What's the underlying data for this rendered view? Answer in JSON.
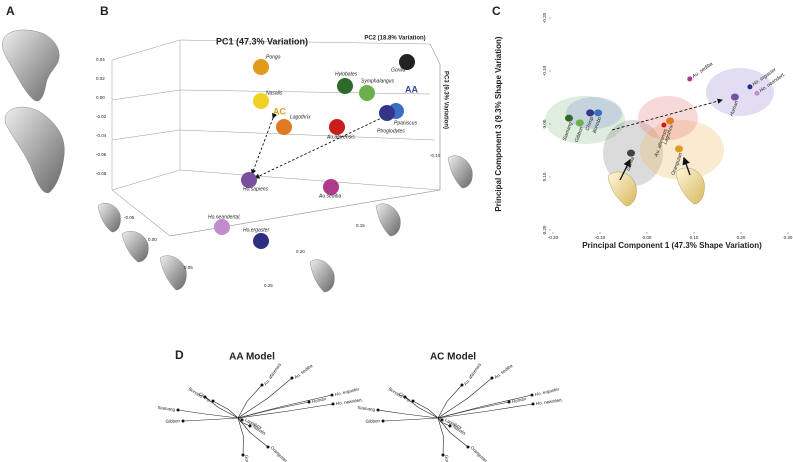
{
  "panels": {
    "a": "A",
    "b": "B",
    "c": "C",
    "d": "D"
  },
  "panel_b": {
    "pc1": "PC1 (47.3% Variation)",
    "pc2": "PC2 (18.8% Variation)",
    "pc3": "PC3 (9.3% Variation)",
    "aa_label": "AA",
    "ac_label": "AC",
    "points": [
      {
        "label": "Pongo",
        "color": "#e09a1c"
      },
      {
        "label": "Nasalis",
        "color": "#f0d020"
      },
      {
        "label": "Lagothrix",
        "color": "#e07a20"
      },
      {
        "label": "Hylobates",
        "color": "#2d6a2d"
      },
      {
        "label": "Symphalangus",
        "color": "#6ab04c"
      },
      {
        "label": "Gorilla",
        "color": "#222222"
      },
      {
        "label": "Ppaniscus",
        "color": "#3a6fc4"
      },
      {
        "label": "Ptroglodytes",
        "color": "#33358a"
      },
      {
        "label": "Au.afarensis",
        "color": "#c81e1e"
      },
      {
        "label": "Ho.sapiens",
        "color": "#7b4fa0"
      },
      {
        "label": "Au.sediba",
        "color": "#b03a8a"
      },
      {
        "label": "Ho.neandertal.",
        "color": "#c08ccc"
      },
      {
        "label": "Ho.ergaster",
        "color": "#2d2f80"
      }
    ],
    "pc3_ticks": [
      "0.04",
      "0.02",
      "0.00",
      "-0.02",
      "-0.04",
      "-0.06",
      "-0.08"
    ],
    "pc1_ticks": [
      "-0.05",
      "0.00",
      "0.05",
      "0.25"
    ],
    "pc2_ticks": [
      "-0.10",
      "0.15",
      "0.20"
    ]
  },
  "chart_data": {
    "type": "scatter",
    "x_label": "Principal Component 1 (47.3% Shape Variation)",
    "y_label": "Principal Component 3 (9.3% Shape Variation)",
    "xlim": [
      -0.2,
      0.3
    ],
    "ylim": [
      -0.2,
      0.2
    ],
    "y_inverted": true,
    "xticks": [
      {
        "value": -0.2,
        "label": "-0.20"
      },
      {
        "value": -0.1,
        "label": "-0.10"
      },
      {
        "value": 0,
        "label": "0.00"
      },
      {
        "value": 0.1,
        "label": "0.10"
      },
      {
        "value": 0.2,
        "label": "0.20"
      },
      {
        "value": 0.3,
        "label": "0.30"
      }
    ],
    "yticks": [
      {
        "value": -0.2,
        "label": "-0.20"
      },
      {
        "value": -0.1,
        "label": "-0.10"
      },
      {
        "value": 0,
        "label": "0.00"
      },
      {
        "value": 0.1,
        "label": "0.10"
      },
      {
        "value": 0.2,
        "label": "0.20"
      }
    ],
    "labels": [
      "Siamang",
      "Gibbon",
      "Bonobo",
      "Chimp",
      "Gorilla",
      "Au. afarensis",
      "Lagothrix",
      "Orangutan",
      "Human",
      "Ho. ergaster",
      "Ho. neandert.",
      "Au. sediba"
    ],
    "colors": [
      "#2d6a2d",
      "#6ab04c",
      "#3a6fc4",
      "#33358a",
      "#444444",
      "#c81e1e",
      "#e07a20",
      "#e09a1c",
      "#7b4fa0",
      "#2d2f80",
      "#c08ccc",
      "#b03a8a"
    ],
    "x": [
      -0.166,
      -0.143,
      -0.104,
      -0.121,
      -0.034,
      0.036,
      0.049,
      0.068,
      0.187,
      0.219,
      0.234,
      0.091
    ],
    "y": [
      -0.011,
      -0.002,
      -0.021,
      -0.021,
      0.055,
      0.002,
      -0.006,
      0.047,
      -0.051,
      -0.07,
      -0.058,
      -0.085
    ]
  },
  "panel_d": {
    "titles": [
      "AA Model",
      "AC Model"
    ],
    "leaves": [
      "Siamang",
      "Gibbon",
      "Bonobo",
      "Chimp",
      "Au. afarensis",
      "Au. sediba",
      "Ho. ergaster",
      "Ho. neandert.",
      "Human",
      "Lagothrix",
      "Nasalis",
      "Gorilla",
      "Orangutan"
    ]
  }
}
